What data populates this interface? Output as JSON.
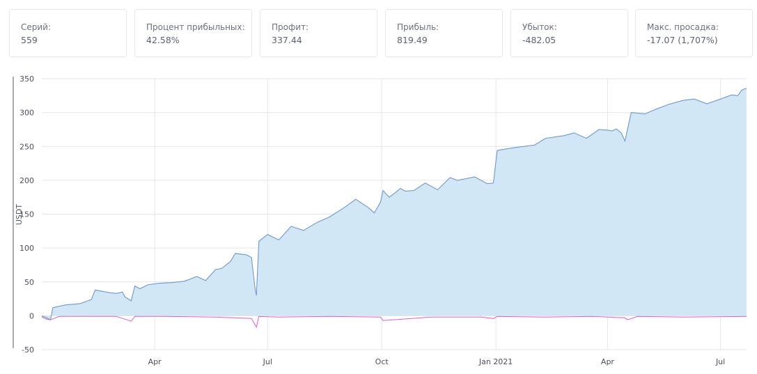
{
  "stats": [
    {
      "label": "Серий:",
      "value": "559"
    },
    {
      "label": "Процент прибыльных:",
      "value": "42.58%"
    },
    {
      "label": "Профит:",
      "value": "337.44"
    },
    {
      "label": "Прибыль:",
      "value": "819.49"
    },
    {
      "label": "Убыток:",
      "value": "-482.05"
    },
    {
      "label": "Макс. просадка:",
      "value": "-17.07 (1,707%)"
    }
  ],
  "chart_data": {
    "type": "area",
    "ylabel": "USDT",
    "ylim": [
      -50,
      350
    ],
    "y_ticks": [
      -50,
      0,
      50,
      100,
      150,
      200,
      250,
      300,
      350
    ],
    "x_ticks": [
      {
        "label": "Apr",
        "date": "2020-04-01"
      },
      {
        "label": "Jul",
        "date": "2020-07-01"
      },
      {
        "label": "Oct",
        "date": "2020-10-01"
      },
      {
        "label": "Jan 2021",
        "date": "2021-01-01"
      },
      {
        "label": "Apr",
        "date": "2021-04-01"
      },
      {
        "label": "Jul",
        "date": "2021-07-01"
      }
    ],
    "xlim": [
      "2020-01-01",
      "2021-07-22"
    ],
    "grid": true,
    "colors": {
      "equity_line": "#6f97d1",
      "equity_fill": "#cfe6f4",
      "drawdown_line": "#e05bd0",
      "grid": "#e3e6ec"
    },
    "series": [
      {
        "name": "",
        "role": "equity",
        "x": [
          "2020-01-01",
          "2020-01-05",
          "2020-01-08",
          "2020-01-10",
          "2020-01-20",
          "2020-02-01",
          "2020-02-10",
          "2020-02-13",
          "2020-02-25",
          "2020-03-01",
          "2020-03-06",
          "2020-03-08",
          "2020-03-13",
          "2020-03-16",
          "2020-03-20",
          "2020-03-27",
          "2020-04-05",
          "2020-04-15",
          "2020-04-25",
          "2020-05-05",
          "2020-05-12",
          "2020-05-20",
          "2020-05-25",
          "2020-06-01",
          "2020-06-05",
          "2020-06-14",
          "2020-06-18",
          "2020-06-21",
          "2020-06-22",
          "2020-06-24",
          "2020-07-01",
          "2020-07-10",
          "2020-07-20",
          "2020-07-30",
          "2020-08-10",
          "2020-08-20",
          "2020-09-01",
          "2020-09-10",
          "2020-09-20",
          "2020-09-25",
          "2020-09-30",
          "2020-10-02",
          "2020-10-07",
          "2020-10-12",
          "2020-10-16",
          "2020-10-20",
          "2020-10-27",
          "2020-11-05",
          "2020-11-15",
          "2020-11-25",
          "2020-12-01",
          "2020-12-15",
          "2020-12-25",
          "2020-12-30",
          "2021-01-02",
          "2021-01-05",
          "2021-01-15",
          "2021-02-01",
          "2021-02-10",
          "2021-02-25",
          "2021-03-05",
          "2021-03-15",
          "2021-03-25",
          "2021-04-01",
          "2021-04-05",
          "2021-04-08",
          "2021-04-12",
          "2021-04-15",
          "2021-04-20",
          "2021-05-01",
          "2021-05-10",
          "2021-05-20",
          "2021-06-01",
          "2021-06-10",
          "2021-06-20",
          "2021-07-01",
          "2021-07-10",
          "2021-07-15",
          "2021-07-18",
          "2021-07-22"
        ],
        "values": [
          -2,
          -5,
          -6,
          12,
          16,
          18,
          24,
          38,
          34,
          33,
          35,
          28,
          22,
          44,
          40,
          46,
          48,
          49,
          51,
          58,
          52,
          68,
          70,
          80,
          92,
          90,
          86,
          38,
          30,
          110,
          120,
          112,
          132,
          126,
          138,
          146,
          160,
          172,
          160,
          152,
          168,
          185,
          175,
          182,
          188,
          184,
          185,
          196,
          186,
          204,
          200,
          205,
          195,
          196,
          244,
          245,
          248,
          252,
          262,
          266,
          270,
          262,
          275,
          274,
          273,
          276,
          270,
          258,
          300,
          298,
          305,
          312,
          318,
          320,
          313,
          320,
          326,
          325,
          333,
          336
        ]
      },
      {
        "name": "",
        "role": "drawdown",
        "x": [
          "2020-01-01",
          "2020-01-05",
          "2020-01-08",
          "2020-01-15",
          "2020-02-01",
          "2020-03-01",
          "2020-03-08",
          "2020-03-13",
          "2020-03-16",
          "2020-04-10",
          "2020-05-20",
          "2020-06-18",
          "2020-06-22",
          "2020-06-24",
          "2020-07-10",
          "2020-08-20",
          "2020-09-30",
          "2020-10-02",
          "2020-11-10",
          "2020-12-20",
          "2020-12-30",
          "2021-01-02",
          "2021-02-10",
          "2021-03-20",
          "2021-04-15",
          "2021-04-17",
          "2021-04-25",
          "2021-06-01",
          "2021-07-22"
        ],
        "values": [
          0,
          -3,
          -6,
          -1,
          -1,
          -1,
          -5,
          -8,
          -1,
          -1,
          -2,
          -4,
          -17,
          -1,
          -2,
          -1,
          -2,
          -7,
          -2,
          -2,
          -4,
          -1,
          -2,
          -1,
          -3,
          -6,
          -1,
          -2,
          -1
        ]
      }
    ]
  }
}
